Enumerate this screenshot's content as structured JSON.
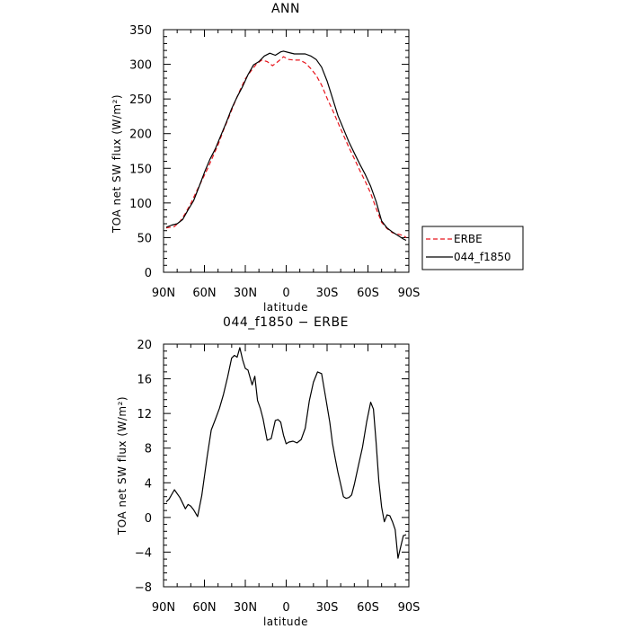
{
  "chart_data": [
    {
      "type": "line",
      "title": "ANN",
      "xlabel": "latitude",
      "ylabel": "TOA net SW flux (W/m²)",
      "xlim": [
        -90,
        90
      ],
      "ylim": [
        0,
        350
      ],
      "x_direction": "north-to-south",
      "x_ticks": [
        -90,
        -60,
        -30,
        0,
        30,
        60,
        90
      ],
      "x_tick_labels": [
        "90N",
        "60N",
        "30N",
        "0",
        "30S",
        "60S",
        "90S"
      ],
      "y_ticks": [
        0,
        50,
        100,
        150,
        200,
        250,
        300,
        350
      ],
      "y_tick_labels": [
        "0",
        "50",
        "100",
        "150",
        "200",
        "250",
        "300",
        "350"
      ],
      "grid": false,
      "legend_position": "outside-right",
      "legend": [
        "ERBE",
        "044_f1850"
      ],
      "series": [
        {
          "name": "ERBE",
          "style": "dashed",
          "color": "#e8141c",
          "x": [
            -88,
            -82,
            -78,
            -74,
            -70,
            -66,
            -62,
            -58,
            -54,
            -50,
            -46,
            -42,
            -38,
            -34,
            -30,
            -26,
            -22,
            -18,
            -14,
            -10,
            -6,
            -2,
            2,
            6,
            10,
            14,
            18,
            22,
            26,
            30,
            34,
            38,
            42,
            46,
            50,
            54,
            58,
            62,
            66,
            70,
            74,
            78,
            82,
            86,
            88
          ],
          "y": [
            64,
            66,
            73,
            85,
            99,
            116,
            132,
            148,
            166,
            184,
            205,
            224,
            244,
            262,
            279,
            290,
            300,
            306,
            304,
            298,
            304,
            311,
            307,
            306,
            306,
            302,
            294,
            284,
            270,
            251,
            234,
            216,
            198,
            180,
            164,
            147,
            131,
            114,
            92,
            72,
            63,
            57,
            55,
            53,
            50
          ]
        },
        {
          "name": "044_f1850",
          "style": "solid",
          "color": "#000000",
          "x": [
            -88,
            -84,
            -80,
            -76,
            -72,
            -68,
            -64,
            -60,
            -56,
            -52,
            -48,
            -44,
            -40,
            -36,
            -32,
            -28,
            -24,
            -20,
            -16,
            -12,
            -8,
            -4,
            -2,
            2,
            6,
            10,
            14,
            18,
            22,
            26,
            30,
            34,
            38,
            42,
            46,
            50,
            54,
            58,
            62,
            66,
            70,
            74,
            78,
            82,
            86,
            88
          ],
          "y": [
            65,
            68,
            70,
            76,
            90,
            103,
            123,
            144,
            163,
            178,
            197,
            216,
            236,
            253,
            268,
            285,
            299,
            304,
            312,
            316,
            313,
            318,
            319,
            317,
            315,
            315,
            315,
            312,
            307,
            296,
            276,
            251,
            226,
            207,
            188,
            172,
            156,
            141,
            124,
            102,
            74,
            64,
            58,
            53,
            48,
            46
          ]
        }
      ]
    },
    {
      "type": "line",
      "title": "044_f1850 − ERBE",
      "xlabel": "latitude",
      "ylabel": "TOA net SW flux (W/m²)",
      "xlim": [
        -90,
        90
      ],
      "ylim": [
        -8,
        20
      ],
      "x_direction": "north-to-south",
      "x_ticks": [
        -90,
        -60,
        -30,
        0,
        30,
        60,
        90
      ],
      "x_tick_labels": [
        "90N",
        "60N",
        "30N",
        "0",
        "30S",
        "60S",
        "90S"
      ],
      "y_ticks": [
        -8,
        -4,
        0,
        4,
        8,
        12,
        16,
        20
      ],
      "y_tick_labels": [
        "−8",
        "−4",
        "0",
        "4",
        "8",
        "12",
        "16",
        "20"
      ],
      "grid": false,
      "series": [
        {
          "style": "solid",
          "color": "#000000",
          "x": [
            -88,
            -86,
            -82,
            -78,
            -74,
            -72,
            -70,
            -68,
            -65,
            -62,
            -58,
            -55,
            -52,
            -49,
            -46,
            -43,
            -40,
            -38,
            -36,
            -34,
            -32,
            -30,
            -28,
            -25,
            -23,
            -21,
            -19,
            -17,
            -14,
            -11,
            -8,
            -6,
            -4,
            -2,
            0,
            2,
            5,
            8,
            11,
            14,
            17,
            20,
            23,
            26,
            29,
            32,
            34,
            36,
            38,
            40,
            42,
            44,
            46,
            48,
            50,
            53,
            56,
            59,
            62,
            64,
            66,
            68,
            70,
            72,
            74,
            76,
            78,
            80,
            82,
            84,
            86,
            88
          ],
          "y": [
            1.8,
            2.1,
            3.2,
            2.3,
            1.0,
            1.5,
            1.3,
            0.9,
            0.1,
            2.5,
            7.0,
            10.1,
            11.3,
            12.6,
            14.2,
            16.2,
            18.4,
            18.7,
            18.5,
            19.6,
            18.2,
            17.2,
            17.0,
            15.3,
            16.3,
            13.5,
            12.6,
            11.4,
            8.9,
            9.1,
            11.2,
            11.3,
            11.0,
            9.5,
            8.5,
            8.7,
            8.8,
            8.6,
            9.0,
            10.3,
            13.5,
            15.6,
            16.8,
            16.6,
            13.8,
            11.0,
            8.5,
            6.8,
            5.2,
            3.8,
            2.4,
            2.2,
            2.3,
            2.6,
            3.8,
            6.0,
            8.1,
            11.0,
            13.3,
            12.5,
            8.6,
            4.2,
            1.2,
            -0.5,
            0.3,
            0.2,
            -0.5,
            -1.4,
            -4.7,
            -3.4,
            -2.1,
            -2.0
          ]
        }
      ]
    }
  ]
}
